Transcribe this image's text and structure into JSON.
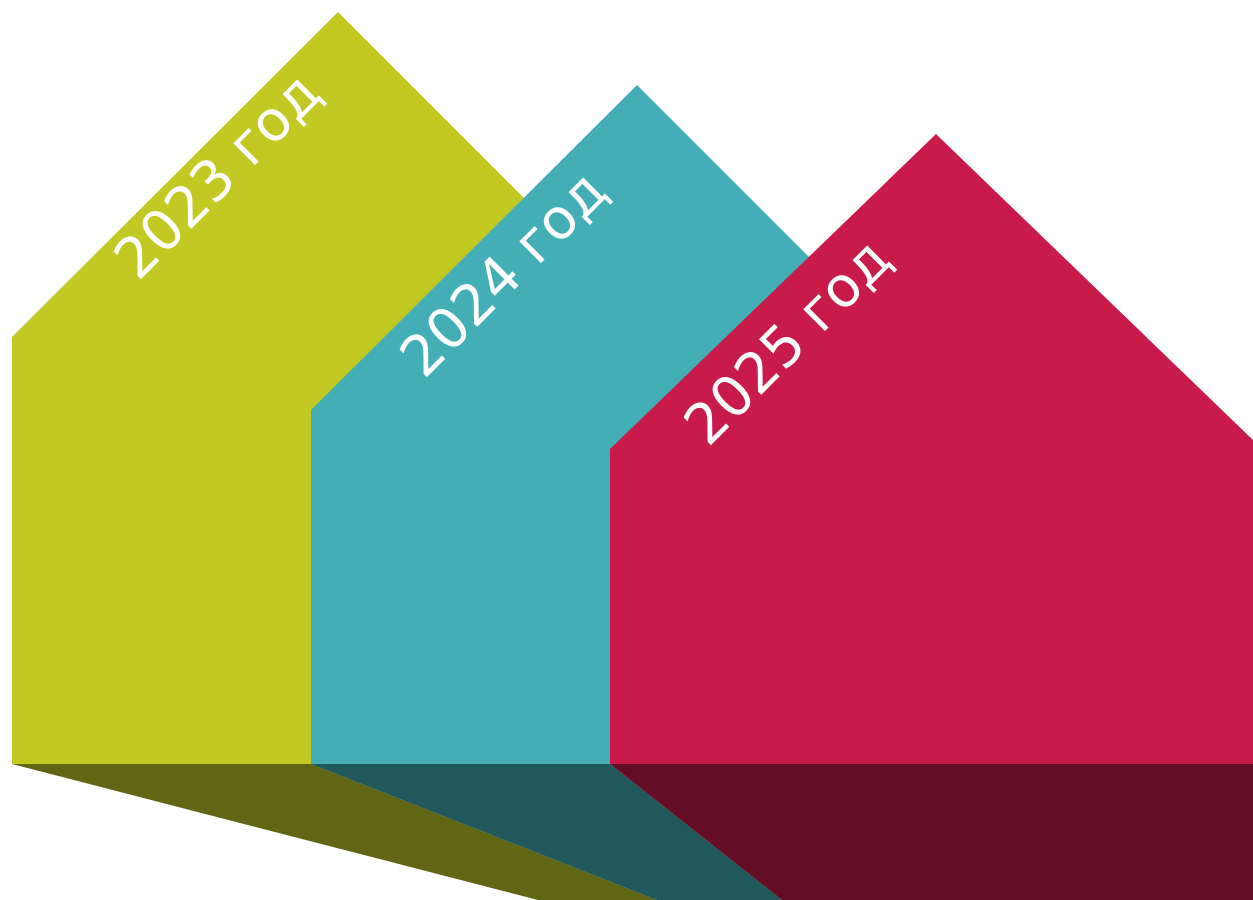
{
  "houses": [
    {
      "label": "2023 год",
      "colors": {
        "face": "#c2c922",
        "shadow": "#616615"
      }
    },
    {
      "label": "2024 год",
      "colors": {
        "face": "#44aeb6",
        "shadow": "#21585c"
      }
    },
    {
      "label": "2025 год",
      "colors": {
        "face": "#c91b4a",
        "shadow": "#640e25"
      }
    }
  ]
}
